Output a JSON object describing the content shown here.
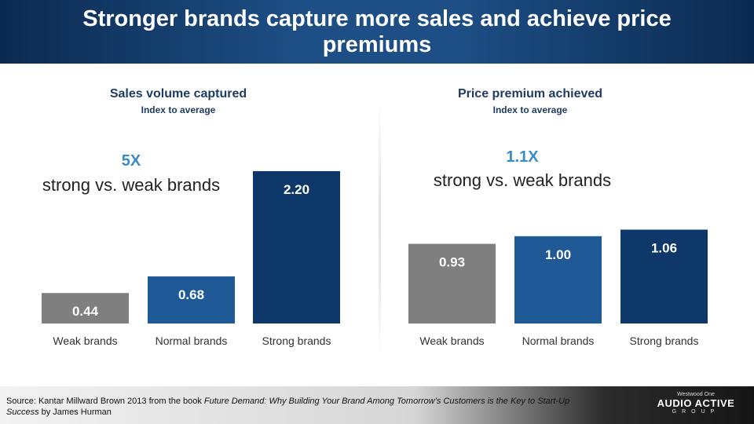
{
  "title": "Stronger brands capture more sales and achieve price premiums",
  "chart_data": [
    {
      "type": "bar",
      "title": "Sales volume captured",
      "subtitle": "Index to average",
      "categories": [
        "Weak brands",
        "Normal brands",
        "Strong brands"
      ],
      "values": [
        0.44,
        0.68,
        2.2
      ],
      "value_labels": [
        "0.44",
        "0.68",
        "2.20"
      ],
      "colors": [
        "#7f7f7f",
        "#1f5a96",
        "#0e3869"
      ],
      "callout_value": "5X",
      "callout_text": "strong vs. weak brands"
    },
    {
      "type": "bar",
      "title": "Price premium achieved",
      "subtitle": "Index to average",
      "categories": [
        "Weak brands",
        "Normal brands",
        "Strong brands"
      ],
      "values": [
        0.93,
        1.0,
        1.06
      ],
      "value_labels": [
        "0.93",
        "1.00",
        "1.06"
      ],
      "colors": [
        "#7f7f7f",
        "#1f5a96",
        "#0e3869"
      ],
      "callout_value": "1.1X",
      "callout_text": "strong vs. weak brands"
    }
  ],
  "footer": {
    "source_prefix": "Source: Kantar Millward Brown 2013 from the book ",
    "source_book": "Future Demand: Why Building Your Brand Among Tomorrow’s Customers is the Key to Start-Up Success",
    "source_suffix": " by James Hurman",
    "logo_top": "Westwood One",
    "logo_main": "AUDIO ACTIVE",
    "logo_sub": "GROUP"
  }
}
